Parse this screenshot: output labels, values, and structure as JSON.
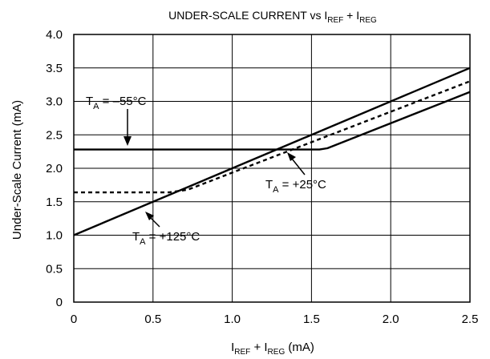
{
  "chart_data": {
    "type": "line",
    "title": {
      "main": "UNDER-SCALE CURRENT vs I",
      "sub1": "REF",
      "mid": " + I",
      "sub2": "REG"
    },
    "xlabel": {
      "pre": "I",
      "sub1": "REF",
      "mid": " + I",
      "sub2": "REG",
      "post": " (mA)"
    },
    "ylabel": "Under-Scale Current (mA)",
    "xlim": [
      0,
      2.5
    ],
    "ylim": [
      0,
      4.0
    ],
    "x_ticks": [
      "0",
      "0.5",
      "1.0",
      "1.5",
      "2.0",
      "2.5"
    ],
    "y_ticks": [
      "0",
      "0.5",
      "1.0",
      "1.5",
      "2.0",
      "2.5",
      "3.0",
      "3.5",
      "4.0"
    ],
    "grid": true,
    "series": [
      {
        "name": "T_A = –55°C",
        "style": "solid",
        "x": [
          0,
          1.55,
          1.6,
          2.5
        ],
        "y": [
          2.28,
          2.28,
          2.3,
          3.14
        ]
      },
      {
        "name": "T_A = +25°C",
        "style": "dashed",
        "x": [
          0,
          0.6,
          0.72,
          2.5
        ],
        "y": [
          1.64,
          1.64,
          1.68,
          3.3
        ]
      },
      {
        "name": "T_A = +125°C",
        "style": "solid",
        "x": [
          0,
          2.5
        ],
        "y": [
          1.0,
          3.5
        ]
      }
    ],
    "annotations": [
      {
        "T": "T",
        "sub": "A",
        "text": " = –55°C"
      },
      {
        "T": "T",
        "sub": "A",
        "text": " = +25°C"
      },
      {
        "T": "T",
        "sub": "A",
        "text": " = +125°C"
      }
    ]
  },
  "colors": {
    "line": "#000000",
    "background": "#ffffff"
  }
}
